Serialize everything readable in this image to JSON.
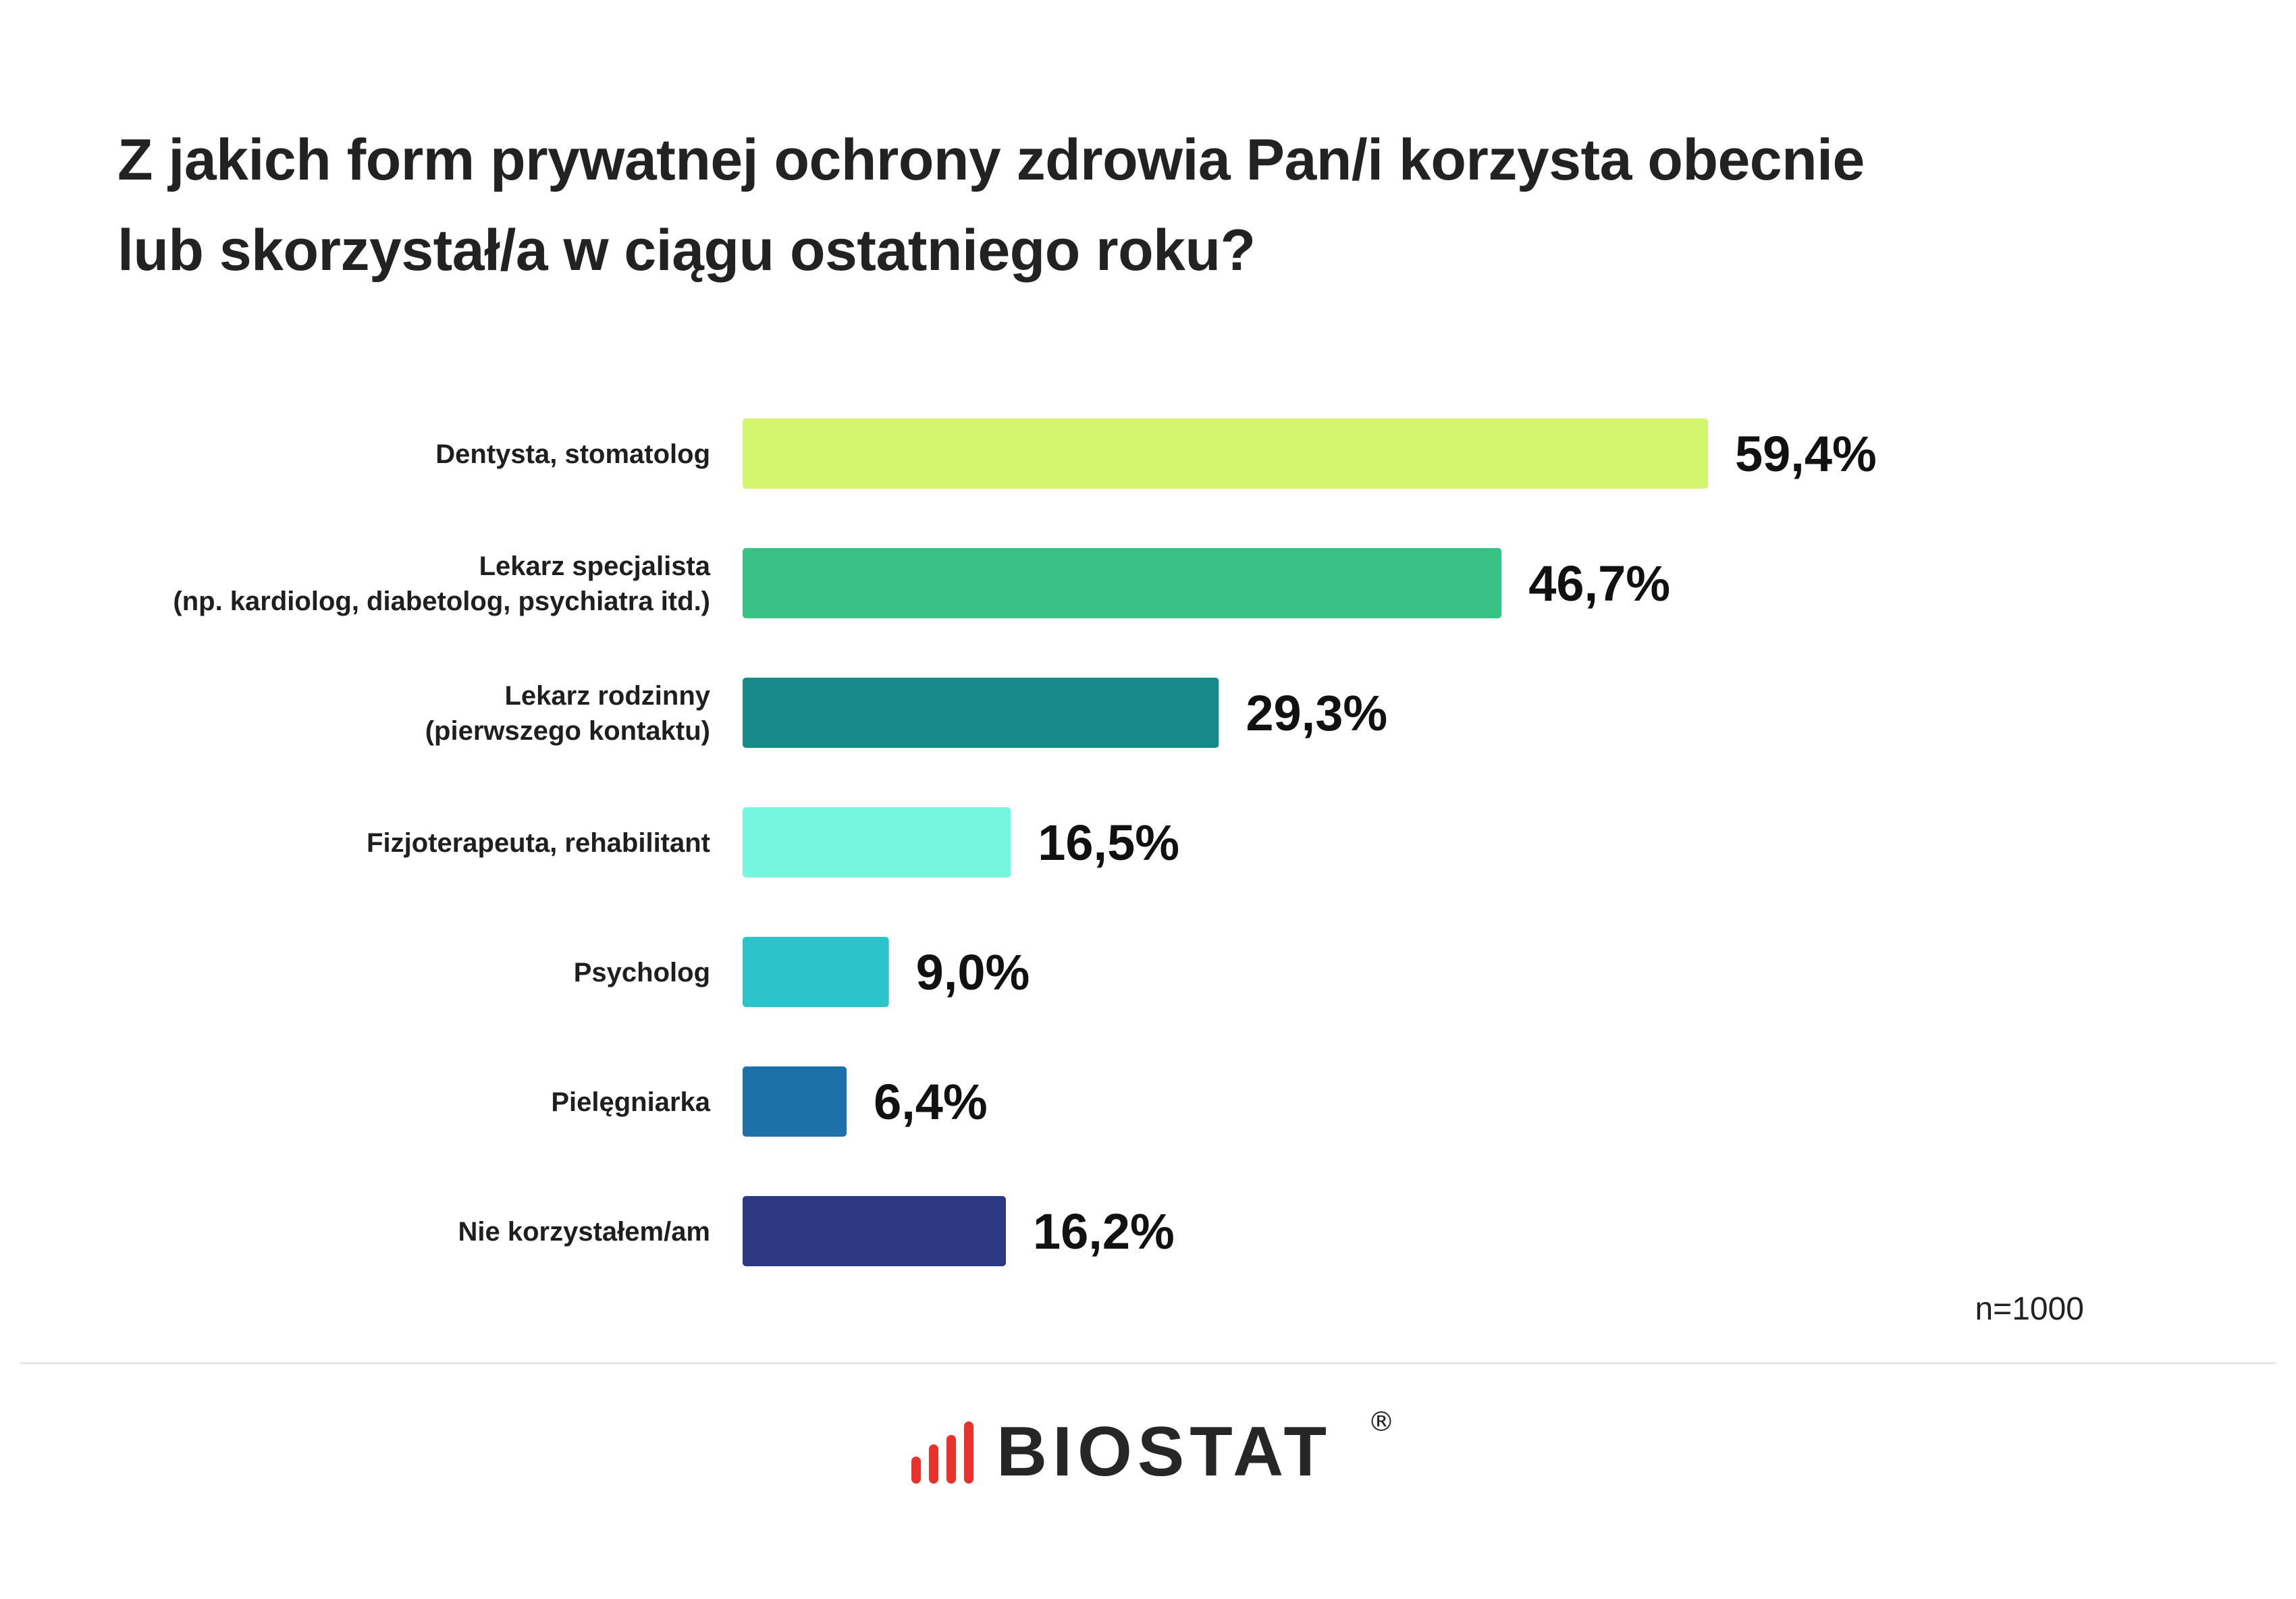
{
  "title_lines": [
    "Z jakich form prywatnej ochrony zdrowia Pan/i korzysta obecnie",
    "lub skorzystał/a w ciągu ostatniego roku?"
  ],
  "chart_data": {
    "type": "bar",
    "orientation": "horizontal",
    "categories": [
      [
        "Dentysta, stomatolog"
      ],
      [
        "Lekarz specjalista",
        "(np. kardiolog, diabetolog, psychiatra itd.)"
      ],
      [
        "Lekarz rodzinny",
        "(pierwszego kontaktu)"
      ],
      [
        "Fizjoterapeuta, rehabilitant"
      ],
      [
        "Psycholog"
      ],
      [
        "Pielęgniarka"
      ],
      [
        "Nie korzystałem/am"
      ]
    ],
    "values": [
      59.4,
      46.7,
      29.3,
      16.5,
      9.0,
      6.4,
      16.2
    ],
    "value_labels": [
      "59,4%",
      "46,7%",
      "29,3%",
      "16,5%",
      "9,0%",
      "6,4%",
      "16,2%"
    ],
    "colors": [
      "#d3f66c",
      "#38c283",
      "#178b8a",
      "#74f7de",
      "#2bc4ca",
      "#1b71a8",
      "#2e3983"
    ],
    "unit": "%",
    "grid": false,
    "legend": "none"
  },
  "note": "n=1000",
  "logo": {
    "text": "BIOSTAT",
    "registered_mark": "®",
    "accent_color": "#e8322b",
    "text_color": "#262626"
  }
}
